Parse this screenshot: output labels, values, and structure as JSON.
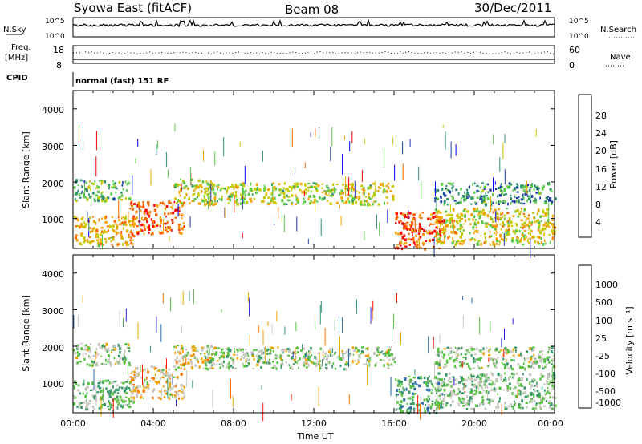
{
  "header": {
    "title": "Syowa East (fitACF)",
    "beam": "Beam 08",
    "date": "30/Dec/2011"
  },
  "top_panels": {
    "nsky_label": "N.Sky",
    "nsky_ticks": [
      "10^5",
      "10^0"
    ],
    "nsearch_label": "N.Search",
    "nsearch_ticks": [
      "10^5",
      "10^0"
    ],
    "freq_label_1": "Freq.",
    "freq_label_2": "[MHz]",
    "freq_ticks": [
      "18",
      "8"
    ],
    "nave_label": "Nave",
    "nave_ticks": [
      "60",
      "0"
    ],
    "cpid_label": "CPID",
    "cpid_text": "normal (fast) 151 RF"
  },
  "x_axis": {
    "ticks": [
      "00:00",
      "04:00",
      "08:00",
      "12:00",
      "16:00",
      "20:00",
      "00:00"
    ],
    "label": "Time UT"
  },
  "power_panel": {
    "ylabel": "Slant Range [km]",
    "yticks": [
      "4000",
      "3000",
      "2000",
      "1000"
    ],
    "colorbar_label": "Power [dB]",
    "colorbar_ticks": [
      "28",
      "24",
      "20",
      "16",
      "12",
      "8",
      "4"
    ],
    "colors": [
      "#0000ff",
      "#1e3ca8",
      "#2e8f6f",
      "#5ac845",
      "#c8c800",
      "#f4a200",
      "#ff6a00",
      "#ff0000"
    ]
  },
  "velocity_panel": {
    "ylabel": "Slant Range [km]",
    "yticks": [
      "4000",
      "3000",
      "2000",
      "1000"
    ],
    "colorbar_label": "Velocity [m s⁻¹]",
    "colorbar_ticks": [
      "1000",
      "500",
      "100",
      "25",
      "-25",
      "-100",
      "-500",
      "-1000"
    ],
    "colors": [
      "#2a2ad0",
      "#2e6ea8",
      "#3a9a6a",
      "#58c040",
      "#c8c8c0",
      "#f0a400",
      "#ff7000",
      "#ff1800"
    ]
  },
  "chart_data": {
    "type": "heatmap",
    "x_range_hours": [
      0,
      24
    ],
    "y_range_km": [
      180,
      4500
    ],
    "power_db_range": [
      0,
      30
    ],
    "velocity_range": [
      -1000,
      1000
    ],
    "echo_regions": [
      {
        "x_start_h": 0.0,
        "x_end_h": 2.8,
        "range_km": [
          1500,
          2100
        ],
        "power_db": 12,
        "velocity": 25
      },
      {
        "x_start_h": 0.0,
        "x_end_h": 3.0,
        "range_km": [
          300,
          1100
        ],
        "power_db": 20,
        "velocity": 150
      },
      {
        "x_start_h": 2.8,
        "x_end_h": 5.5,
        "range_km": [
          600,
          1500
        ],
        "power_db": 24,
        "velocity": -300
      },
      {
        "x_start_h": 5.0,
        "x_end_h": 7.0,
        "range_km": [
          1400,
          2100
        ],
        "power_db": 16,
        "velocity": -200
      },
      {
        "x_start_h": 6.5,
        "x_end_h": 16.0,
        "range_km": [
          1400,
          2000
        ],
        "power_db": 16,
        "velocity": 0
      },
      {
        "x_start_h": 16.0,
        "x_end_h": 18.5,
        "range_km": [
          200,
          1200
        ],
        "power_db": 26,
        "velocity": 300
      },
      {
        "x_start_h": 18.0,
        "x_end_h": 24.0,
        "range_km": [
          300,
          1300
        ],
        "power_db": 18,
        "velocity": 100
      },
      {
        "x_start_h": 18.0,
        "x_end_h": 24.0,
        "range_km": [
          1400,
          2000
        ],
        "power_db": 10,
        "velocity": 25
      }
    ]
  }
}
